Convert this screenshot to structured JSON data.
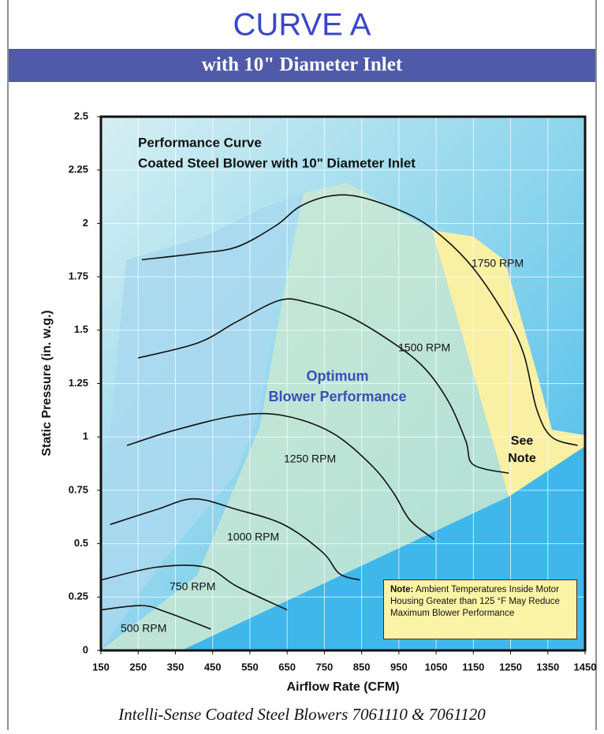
{
  "chart_data": {
    "type": "line",
    "title": "CURVE A",
    "subtitle": "with 10\" Diameter Inlet",
    "annotations": {
      "heading1": "Performance Curve",
      "heading2": "Coated Steel Blower with 10\" Diameter Inlet",
      "optimum1": "Optimum",
      "optimum2": "Blower Performance",
      "see1": "See",
      "see2": "Note"
    },
    "note": {
      "label": "Note:",
      "text": "Ambient Temperatures Inside Motor Housing Greater than 125 °F May Reduce Maximum Blower Performance"
    },
    "footer": "Intelli-Sense Coated Steel Blowers 7061110 & 7061120",
    "x_label": "Airflow Rate (CFM)",
    "y_label": "Static Pressure (in. w.g.)",
    "xlim": [
      150,
      1450
    ],
    "xticks": [
      150,
      250,
      350,
      450,
      550,
      650,
      750,
      850,
      950,
      1050,
      1150,
      1250,
      1350,
      1450
    ],
    "ylim": [
      0,
      2.5
    ],
    "yticks": [
      0,
      0.25,
      0.5,
      0.75,
      1,
      1.25,
      1.5,
      1.75,
      2,
      2.25,
      2.5
    ],
    "grid": true,
    "series": [
      {
        "name": "1750 RPM",
        "color": "#111111",
        "x": [
          260,
          410,
          515,
          620,
          685,
          770,
          855,
          980,
          1065,
          1150,
          1235,
          1285,
          1320,
          1360,
          1430
        ],
        "values": [
          1.83,
          1.86,
          1.89,
          1.99,
          2.08,
          2.13,
          2.12,
          2.04,
          1.94,
          1.79,
          1.57,
          1.39,
          1.13,
          1.0,
          0.96
        ]
      },
      {
        "name": "1500 RPM",
        "color": "#111111",
        "x": [
          250,
          410,
          515,
          630,
          705,
          810,
          935,
          1020,
          1085,
          1130,
          1150,
          1245
        ],
        "values": [
          1.37,
          1.44,
          1.54,
          1.64,
          1.63,
          1.57,
          1.44,
          1.32,
          1.16,
          0.98,
          0.87,
          0.83
        ]
      },
      {
        "name": "1250 RPM",
        "color": "#111111",
        "x": [
          220,
          345,
          515,
          640,
          770,
          875,
          935,
          980,
          1045
        ],
        "values": [
          0.96,
          1.03,
          1.1,
          1.1,
          1.02,
          0.87,
          0.74,
          0.61,
          0.52
        ]
      },
      {
        "name": "1000 RPM",
        "color": "#111111",
        "x": [
          175,
          300,
          400,
          515,
          640,
          745,
          790,
          845
        ],
        "values": [
          0.59,
          0.66,
          0.71,
          0.66,
          0.59,
          0.46,
          0.36,
          0.33
        ]
      },
      {
        "name": "750 RPM",
        "color": "#111111",
        "x": [
          150,
          300,
          430,
          515,
          650
        ],
        "values": [
          0.33,
          0.39,
          0.39,
          0.3,
          0.19
        ]
      },
      {
        "name": "500 RPM",
        "color": "#111111",
        "x": [
          150,
          260,
          325,
          445
        ],
        "values": [
          0.19,
          0.21,
          0.18,
          0.1
        ]
      }
    ]
  }
}
